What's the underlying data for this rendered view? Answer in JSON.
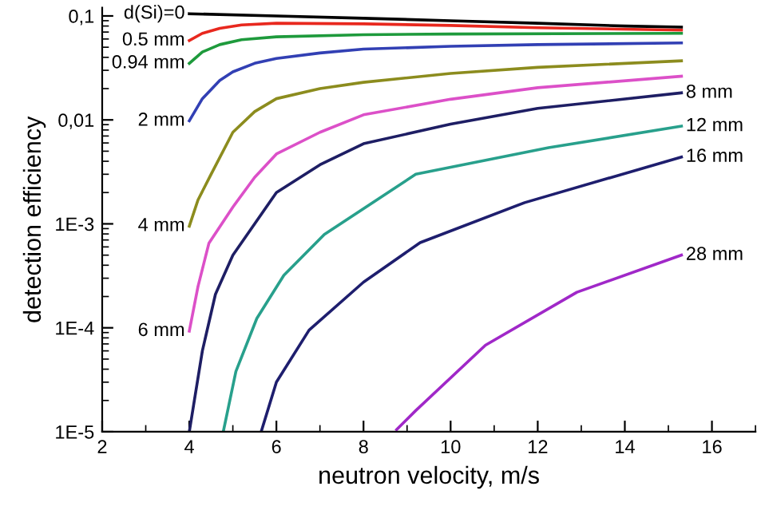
{
  "chart_data": {
    "type": "line",
    "xlabel": "neutron velocity, m/s",
    "ylabel": "detection efficiency",
    "log": "y",
    "xlim": [
      2,
      17
    ],
    "xticks": [
      2,
      4,
      6,
      8,
      10,
      12,
      14,
      16
    ],
    "ylim": [
      1e-05,
      0.12
    ],
    "yticks": [
      {
        "value": 1e-05,
        "label": "1E-5"
      },
      {
        "value": 0.0001,
        "label": "1E-4"
      },
      {
        "value": 0.001,
        "label": "1E-3"
      },
      {
        "value": 0.01,
        "label": "0,01"
      },
      {
        "value": 0.1,
        "label": "0,1"
      }
    ],
    "grid": false,
    "legend": false,
    "marker": "none",
    "line_style": "solid",
    "series": [
      {
        "name": "d(Si)=0",
        "color": "#000000",
        "x": [
          4,
          6,
          8,
          10,
          12,
          14,
          15.3
        ],
        "values": [
          0.105,
          0.1,
          0.095,
          0.09,
          0.085,
          0.08,
          0.078
        ]
      },
      {
        "name": "0.5 mm",
        "color": "#e8281e",
        "x": [
          4,
          4.3,
          4.7,
          5.2,
          6,
          8,
          10,
          12,
          15.3
        ],
        "values": [
          0.058,
          0.068,
          0.076,
          0.082,
          0.085,
          0.084,
          0.081,
          0.077,
          0.073
        ]
      },
      {
        "name": "0.94 mm",
        "color": "#1e9a3c",
        "x": [
          4,
          4.3,
          4.7,
          5.2,
          6,
          8,
          10,
          15.3
        ],
        "values": [
          0.035,
          0.045,
          0.053,
          0.059,
          0.063,
          0.066,
          0.067,
          0.068
        ]
      },
      {
        "name": "2 mm",
        "color": "#3240b4",
        "x": [
          4,
          4.3,
          4.7,
          5,
          5.5,
          6,
          7,
          8,
          10,
          12,
          15.3
        ],
        "values": [
          0.0098,
          0.016,
          0.024,
          0.029,
          0.035,
          0.039,
          0.044,
          0.048,
          0.051,
          0.053,
          0.055
        ]
      },
      {
        "name": "4 mm",
        "color": "#8c8c1e",
        "x": [
          4,
          4.2,
          4.5,
          5,
          5.5,
          6,
          7,
          8,
          10,
          12,
          15.3
        ],
        "values": [
          0.00095,
          0.0017,
          0.003,
          0.0076,
          0.012,
          0.016,
          0.02,
          0.023,
          0.028,
          0.032,
          0.037
        ]
      },
      {
        "name": "6 mm",
        "color": "#dc50c8",
        "x": [
          4,
          4.2,
          4.45,
          5,
          5.5,
          6,
          7,
          8,
          10,
          12,
          15.3
        ],
        "values": [
          9.3e-05,
          0.00025,
          0.00065,
          0.00145,
          0.0028,
          0.0047,
          0.0076,
          0.0112,
          0.0158,
          0.0204,
          0.0263
        ]
      },
      {
        "name": "8 mm",
        "color": "#1e1e64",
        "x": [
          4,
          4.3,
          4.6,
          5,
          6,
          7,
          8,
          10,
          12,
          15.3
        ],
        "values": [
          1e-05,
          6e-05,
          0.00021,
          0.0005,
          0.002,
          0.0037,
          0.0059,
          0.0091,
          0.0129,
          0.0182
        ]
      },
      {
        "name": "12 mm",
        "color": "#28a08c",
        "x": [
          4.78,
          5.07,
          5.55,
          6.17,
          7.1,
          9.2,
          12.25,
          15.3
        ],
        "values": [
          1e-05,
          3.8e-05,
          0.000123,
          0.00032,
          0.00079,
          0.003,
          0.0054,
          0.0087
        ]
      },
      {
        "name": "16 mm",
        "color": "#1e1e6e",
        "x": [
          5.65,
          6,
          6.75,
          8,
          9.3,
          11.7,
          15.3
        ],
        "values": [
          1e-05,
          3e-05,
          9.5e-05,
          0.000275,
          0.00066,
          0.0016,
          0.0044
        ]
      },
      {
        "name": "28 mm",
        "color": "#a028c8",
        "x": [
          8.76,
          9.2,
          10.8,
          12.9,
          15.3
        ],
        "values": [
          1.05e-05,
          1.6e-05,
          6.8e-05,
          0.00022,
          0.0005
        ]
      }
    ]
  }
}
